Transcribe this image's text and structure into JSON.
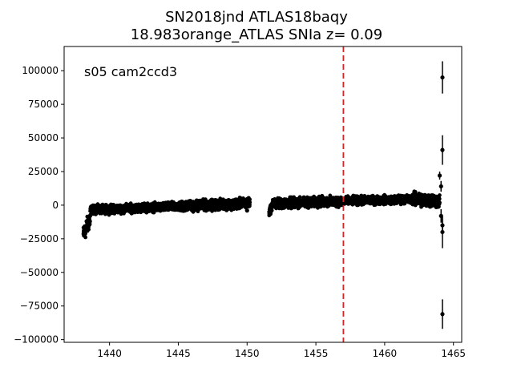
{
  "chart_data": {
    "type": "scatter",
    "title_line1": "SN2018jnd  ATLAS18baqy",
    "title_line2": "18.983orange_ATLAS SNIa z= 0.09",
    "annotation": "s05 cam2ccd3",
    "xlabel": "",
    "ylabel": "",
    "xlim": [
      1436.7,
      1465.6
    ],
    "ylim": [
      -102000,
      118000
    ],
    "x_ticks": [
      1440,
      1445,
      1450,
      1455,
      1460,
      1465
    ],
    "x_tick_labels": [
      "1440",
      "1445",
      "1450",
      "1455",
      "1460",
      "1465"
    ],
    "y_ticks": [
      -100000,
      -75000,
      -50000,
      -25000,
      0,
      25000,
      50000,
      75000,
      100000
    ],
    "y_tick_labels": [
      "−100000",
      "−75000",
      "−50000",
      "−25000",
      "0",
      "25000",
      "50000",
      "75000",
      "100000"
    ],
    "grid": false,
    "marker_color": "#000000",
    "vline": {
      "x": 1457.0,
      "color": "#d62728",
      "style": "dashed"
    },
    "series": [
      {
        "segments": [
          {
            "x_start": 1438.1,
            "x_end": 1438.6,
            "y_start": -22000,
            "y_end": -10000,
            "scatter": 5000
          },
          {
            "x_start": 1438.6,
            "x_end": 1445.0,
            "y_start": -3500,
            "y_end": -1000,
            "scatter": 2500
          },
          {
            "x_start": 1445.0,
            "x_end": 1450.2,
            "y_start": -1000,
            "y_end": 1500,
            "scatter": 3000
          },
          {
            "x_start": 1451.6,
            "x_end": 1451.8,
            "y_start": -5000,
            "y_end": -1000,
            "scatter": 2500
          },
          {
            "x_start": 1451.8,
            "x_end": 1457.0,
            "y_start": 1000,
            "y_end": 3000,
            "scatter": 3000
          },
          {
            "x_start": 1457.0,
            "x_end": 1462.0,
            "y_start": 3000,
            "y_end": 4500,
            "scatter": 2500
          },
          {
            "x_start": 1462.0,
            "x_end": 1464.0,
            "y_start": 4500,
            "y_end": 3000,
            "scatter": 4000
          }
        ],
        "points": [
          {
            "x": 1464.2,
            "y": 95000,
            "err": 12000
          },
          {
            "x": 1464.2,
            "y": 41000,
            "err": 11000
          },
          {
            "x": 1464.2,
            "y": -20000,
            "err": 12000
          },
          {
            "x": 1464.2,
            "y": -81000,
            "err": 11000
          },
          {
            "x": 1464.0,
            "y": 22000,
            "err": 3000
          },
          {
            "x": 1464.1,
            "y": 14000,
            "err": 4000
          },
          {
            "x": 1464.1,
            "y": -8000,
            "err": 5000
          },
          {
            "x": 1464.2,
            "y": -15000,
            "err": 6000
          },
          {
            "x": 1450.0,
            "y": -4000,
            "err": 0
          },
          {
            "x": 1449.9,
            "y": 4000,
            "err": 0
          }
        ]
      }
    ]
  }
}
